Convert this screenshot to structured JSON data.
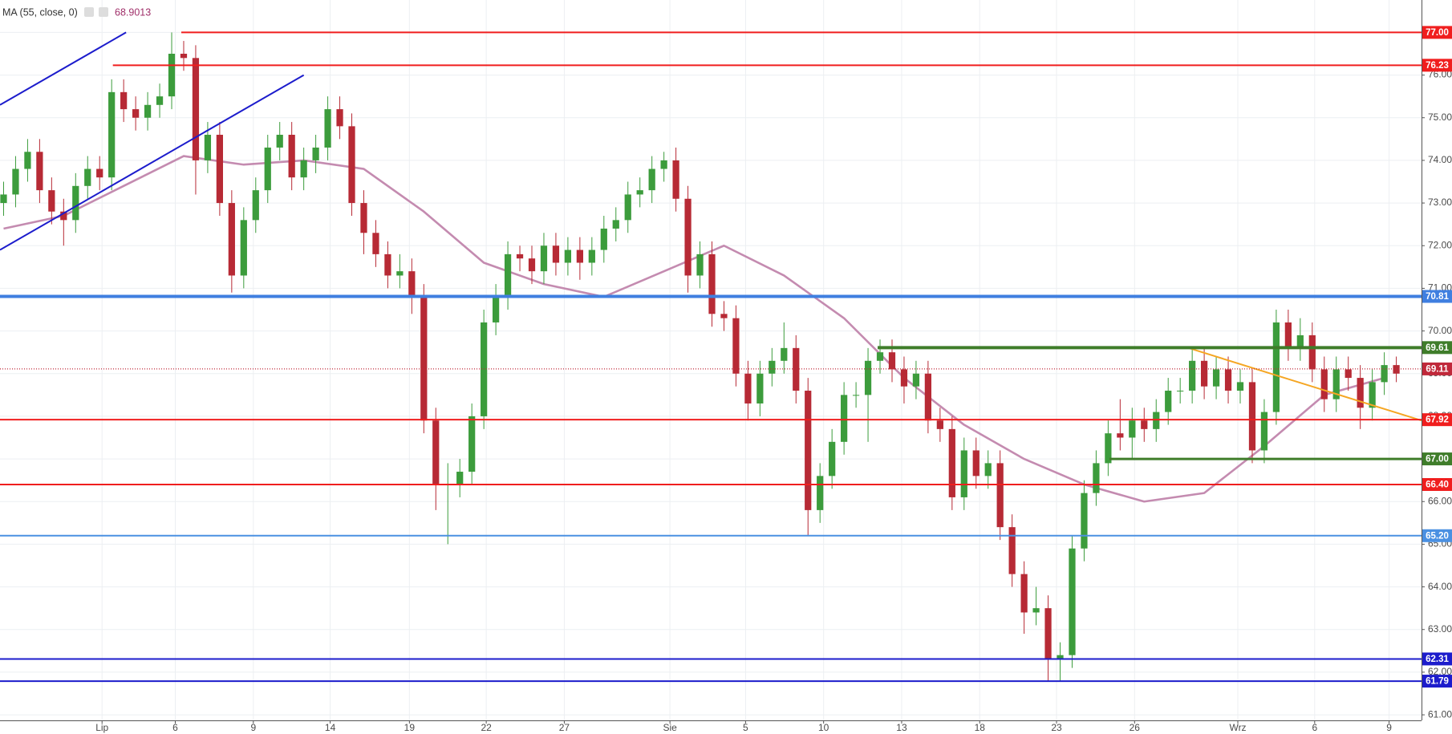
{
  "chart_data": {
    "type": "candlestick",
    "indicator": {
      "name": "MA (55, close, 0)",
      "value_label": "68.9013",
      "color": "#c48bb0",
      "x": [
        0,
        5,
        10,
        15,
        20,
        25,
        30,
        35,
        40,
        45,
        50,
        55,
        60,
        65,
        70,
        75,
        80,
        85,
        90,
        95,
        100,
        105,
        110,
        115
      ],
      "values": [
        72.4,
        72.7,
        73.4,
        74.1,
        73.9,
        74.0,
        73.8,
        72.8,
        71.6,
        71.1,
        70.8,
        71.4,
        72.0,
        71.3,
        70.3,
        68.9,
        67.8,
        67.0,
        66.4,
        66.0,
        66.2,
        67.3,
        68.5,
        68.9
      ]
    },
    "up_color": "#3c9c3c",
    "down_color": "#b72a35",
    "ohlc": [
      [
        73.0,
        73.5,
        72.7,
        73.2
      ],
      [
        73.2,
        74.1,
        72.9,
        73.8
      ],
      [
        73.8,
        74.5,
        73.5,
        74.2
      ],
      [
        74.2,
        74.5,
        73.0,
        73.3
      ],
      [
        73.3,
        73.6,
        72.5,
        72.8
      ],
      [
        72.8,
        73.1,
        72.0,
        72.6
      ],
      [
        72.6,
        73.7,
        72.3,
        73.4
      ],
      [
        73.4,
        74.1,
        73.1,
        73.8
      ],
      [
        73.8,
        74.1,
        73.3,
        73.6
      ],
      [
        73.6,
        75.9,
        73.3,
        75.6
      ],
      [
        75.6,
        75.9,
        74.9,
        75.2
      ],
      [
        75.2,
        75.5,
        74.7,
        75.0
      ],
      [
        75.0,
        75.6,
        74.7,
        75.3
      ],
      [
        75.3,
        75.8,
        75.0,
        75.5
      ],
      [
        75.5,
        77.0,
        75.2,
        76.5
      ],
      [
        76.5,
        76.8,
        76.1,
        76.4
      ],
      [
        76.4,
        76.7,
        73.2,
        74.0
      ],
      [
        74.0,
        74.9,
        73.7,
        74.6
      ],
      [
        74.6,
        74.9,
        72.7,
        73.0
      ],
      [
        73.0,
        73.3,
        70.9,
        71.3
      ],
      [
        71.3,
        72.9,
        71.0,
        72.6
      ],
      [
        72.6,
        73.6,
        72.3,
        73.3
      ],
      [
        73.3,
        74.6,
        73.0,
        74.3
      ],
      [
        74.3,
        74.9,
        74.0,
        74.6
      ],
      [
        74.6,
        74.9,
        73.3,
        73.6
      ],
      [
        73.6,
        74.3,
        73.3,
        74.0
      ],
      [
        74.0,
        74.6,
        73.7,
        74.3
      ],
      [
        74.3,
        75.5,
        74.0,
        75.2
      ],
      [
        75.2,
        75.5,
        74.5,
        74.8
      ],
      [
        74.8,
        75.1,
        72.7,
        73.0
      ],
      [
        73.0,
        73.3,
        71.8,
        72.3
      ],
      [
        72.3,
        72.6,
        71.5,
        71.8
      ],
      [
        71.8,
        72.1,
        71.0,
        71.3
      ],
      [
        71.3,
        71.8,
        71.0,
        71.4
      ],
      [
        71.4,
        71.7,
        70.4,
        70.8
      ],
      [
        70.8,
        71.1,
        67.6,
        67.9
      ],
      [
        67.9,
        68.2,
        65.8,
        66.4
      ],
      [
        66.4,
        66.9,
        65.0,
        66.4
      ],
      [
        66.4,
        67.0,
        66.1,
        66.7
      ],
      [
        66.7,
        68.3,
        66.4,
        68.0
      ],
      [
        68.0,
        70.5,
        67.7,
        70.2
      ],
      [
        70.2,
        71.1,
        69.9,
        70.8
      ],
      [
        70.8,
        72.1,
        70.5,
        71.8
      ],
      [
        71.8,
        72.0,
        71.4,
        71.7
      ],
      [
        71.7,
        72.0,
        71.1,
        71.4
      ],
      [
        71.4,
        72.3,
        71.1,
        72.0
      ],
      [
        72.0,
        72.3,
        71.3,
        71.6
      ],
      [
        71.6,
        72.2,
        71.3,
        71.9
      ],
      [
        71.9,
        72.2,
        71.2,
        71.6
      ],
      [
        71.6,
        72.2,
        71.3,
        71.9
      ],
      [
        71.9,
        72.7,
        71.6,
        72.4
      ],
      [
        72.4,
        72.9,
        72.1,
        72.6
      ],
      [
        72.6,
        73.5,
        72.3,
        73.2
      ],
      [
        73.2,
        73.6,
        72.9,
        73.3
      ],
      [
        73.3,
        74.1,
        73.0,
        73.8
      ],
      [
        73.8,
        74.2,
        73.5,
        74.0
      ],
      [
        74.0,
        74.3,
        72.8,
        73.1
      ],
      [
        73.1,
        73.4,
        70.9,
        71.3
      ],
      [
        71.3,
        72.1,
        71.0,
        71.8
      ],
      [
        71.8,
        72.1,
        70.1,
        70.4
      ],
      [
        70.4,
        70.7,
        70.0,
        70.3
      ],
      [
        70.3,
        70.6,
        68.7,
        69.0
      ],
      [
        69.0,
        69.3,
        67.9,
        68.3
      ],
      [
        68.3,
        69.3,
        68.0,
        69.0
      ],
      [
        69.0,
        69.6,
        68.7,
        69.3
      ],
      [
        69.3,
        70.2,
        69.0,
        69.6
      ],
      [
        69.6,
        69.9,
        68.3,
        68.6
      ],
      [
        68.6,
        68.9,
        65.2,
        65.8
      ],
      [
        65.8,
        66.9,
        65.5,
        66.6
      ],
      [
        66.6,
        67.7,
        66.3,
        67.4
      ],
      [
        67.4,
        68.8,
        67.1,
        68.5
      ],
      [
        68.5,
        68.8,
        68.2,
        68.5
      ],
      [
        68.5,
        69.6,
        67.4,
        69.3
      ],
      [
        69.3,
        69.8,
        69.0,
        69.5
      ],
      [
        69.5,
        69.8,
        68.8,
        69.1
      ],
      [
        69.1,
        69.4,
        68.3,
        68.7
      ],
      [
        68.7,
        69.3,
        68.4,
        69.0
      ],
      [
        69.0,
        69.3,
        67.6,
        67.9
      ],
      [
        67.9,
        68.2,
        67.4,
        67.7
      ],
      [
        67.7,
        68.0,
        65.8,
        66.1
      ],
      [
        66.1,
        67.5,
        65.8,
        67.2
      ],
      [
        67.2,
        67.5,
        66.3,
        66.6
      ],
      [
        66.6,
        67.2,
        66.3,
        66.9
      ],
      [
        66.9,
        67.2,
        65.1,
        65.4
      ],
      [
        65.4,
        65.7,
        64.0,
        64.3
      ],
      [
        64.3,
        64.6,
        62.9,
        63.4
      ],
      [
        63.4,
        64.0,
        63.1,
        63.5
      ],
      [
        63.5,
        63.8,
        61.8,
        62.3
      ],
      [
        62.3,
        62.7,
        61.8,
        62.4
      ],
      [
        62.4,
        65.2,
        62.1,
        64.9
      ],
      [
        64.9,
        66.5,
        64.6,
        66.2
      ],
      [
        66.2,
        67.2,
        65.9,
        66.9
      ],
      [
        66.9,
        67.9,
        66.6,
        67.6
      ],
      [
        67.6,
        68.4,
        67.2,
        67.5
      ],
      [
        67.5,
        68.2,
        67.0,
        67.9
      ],
      [
        67.9,
        68.2,
        67.4,
        67.7
      ],
      [
        67.7,
        68.4,
        67.4,
        68.1
      ],
      [
        68.1,
        68.9,
        67.8,
        68.6
      ],
      [
        68.6,
        68.9,
        68.3,
        68.6
      ],
      [
        68.6,
        69.6,
        68.3,
        69.3
      ],
      [
        69.3,
        69.6,
        68.4,
        68.7
      ],
      [
        68.7,
        69.4,
        68.4,
        69.1
      ],
      [
        69.1,
        69.4,
        68.3,
        68.6
      ],
      [
        68.6,
        69.1,
        68.3,
        68.8
      ],
      [
        68.8,
        69.1,
        66.9,
        67.2
      ],
      [
        67.2,
        68.4,
        66.9,
        68.1
      ],
      [
        68.1,
        70.5,
        67.8,
        70.2
      ],
      [
        70.2,
        70.5,
        69.3,
        69.6
      ],
      [
        69.6,
        70.3,
        69.3,
        69.9
      ],
      [
        69.9,
        70.2,
        68.8,
        69.1
      ],
      [
        69.1,
        69.4,
        68.1,
        68.4
      ],
      [
        68.4,
        69.4,
        68.1,
        69.1
      ],
      [
        69.1,
        69.4,
        68.6,
        68.9
      ],
      [
        68.9,
        69.2,
        67.7,
        68.2
      ],
      [
        68.2,
        69.1,
        67.9,
        68.8
      ],
      [
        68.8,
        69.5,
        68.5,
        69.2
      ],
      [
        69.2,
        69.4,
        68.8,
        69.0
      ]
    ],
    "xlim": [
      -0.3,
      118.1
    ],
    "ylim": [
      60.87,
      77.76
    ],
    "xticks": [
      {
        "value": 8.2,
        "label": "Lip"
      },
      {
        "value": 14.3,
        "label": "6"
      },
      {
        "value": 20.8,
        "label": "9"
      },
      {
        "value": 27.2,
        "label": "14"
      },
      {
        "value": 33.8,
        "label": "19"
      },
      {
        "value": 40.2,
        "label": "22"
      },
      {
        "value": 46.7,
        "label": "27"
      },
      {
        "value": 55.5,
        "label": "Sie"
      },
      {
        "value": 61.8,
        "label": "5"
      },
      {
        "value": 68.3,
        "label": "10"
      },
      {
        "value": 74.8,
        "label": "13"
      },
      {
        "value": 81.3,
        "label": "18"
      },
      {
        "value": 87.7,
        "label": "23"
      },
      {
        "value": 94.2,
        "label": "26"
      },
      {
        "value": 102.8,
        "label": "Wrz"
      },
      {
        "value": 109.2,
        "label": "6"
      },
      {
        "value": 115.4,
        "label": "9"
      }
    ],
    "yticks": [
      {
        "value": 61,
        "label": "61.00"
      },
      {
        "value": 62,
        "label": "62.00"
      },
      {
        "value": 63,
        "label": "63.00"
      },
      {
        "value": 64,
        "label": "64.00"
      },
      {
        "value": 65,
        "label": "65.00"
      },
      {
        "value": 66,
        "label": "66.00"
      },
      {
        "value": 67,
        "label": "67.00"
      },
      {
        "value": 68,
        "label": "68.00"
      },
      {
        "value": 69,
        "label": "69.00"
      },
      {
        "value": 70,
        "label": "70.00"
      },
      {
        "value": 71,
        "label": "71.00"
      },
      {
        "value": 72,
        "label": "72.00"
      },
      {
        "value": 73,
        "label": "73.00"
      },
      {
        "value": 74,
        "label": "74.00"
      },
      {
        "value": 75,
        "label": "75.00"
      },
      {
        "value": 76,
        "label": "76.00"
      },
      {
        "value": 77,
        "label": "77.00"
      }
    ],
    "grid": true,
    "levels": [
      {
        "value": 77.0,
        "label": "77.00",
        "color": "#f01e1e",
        "start": 14.8
      },
      {
        "value": 76.23,
        "label": "76.23",
        "color": "#f01e1e",
        "start": 9.1
      },
      {
        "value": 70.81,
        "label": "70.81",
        "color": "#3f7fe0",
        "start": -0.3,
        "width": 4
      },
      {
        "value": 69.61,
        "label": "69.61",
        "color": "#3f7d2a",
        "start": 72.8,
        "width": 4
      },
      {
        "value": 69.11,
        "label": "69.11",
        "color": "#c0283a",
        "start": -0.3,
        "dash": true
      },
      {
        "value": 67.92,
        "label": "67.92",
        "color": "#f01e1e",
        "start": -0.3
      },
      {
        "value": 67.0,
        "label": "67.00",
        "color": "#3f7d2a",
        "start": 92.1,
        "width": 3
      },
      {
        "value": 66.4,
        "label": "66.40",
        "color": "#f01e1e",
        "start": -0.3
      },
      {
        "value": 65.2,
        "label": "65.20",
        "color": "#4a90e2",
        "start": -0.3
      },
      {
        "value": 62.31,
        "label": "62.31",
        "color": "#1c1ccc",
        "start": -0.3
      },
      {
        "value": 61.79,
        "label": "61.79",
        "color": "#1c1ccc",
        "start": -0.3
      }
    ],
    "trendlines": [
      {
        "color": "#1c1ccc",
        "points": [
          [
            -0.3,
            75.3
          ],
          [
            10.2,
            77.0
          ]
        ]
      },
      {
        "color": "#1c1ccc",
        "points": [
          [
            -0.3,
            71.9
          ],
          [
            25.0,
            76.0
          ]
        ]
      },
      {
        "color": "#f5a623",
        "points": [
          [
            98.7,
            69.6
          ],
          [
            118.1,
            67.9
          ]
        ]
      }
    ]
  }
}
